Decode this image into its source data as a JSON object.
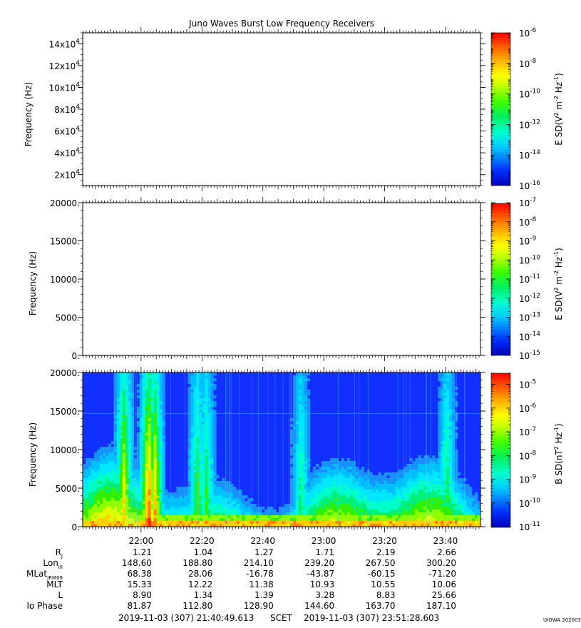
{
  "title": "Juno Waves Burst Low Frequency Receivers",
  "chart_data": [
    {
      "type": "heatmap",
      "panel": "top",
      "ylabel": "Frequency (Hz)",
      "y_ticks": [
        {
          "value": 20000,
          "mant": "2x10",
          "exp": "4"
        },
        {
          "value": 40000,
          "mant": "4x10",
          "exp": "4"
        },
        {
          "value": 60000,
          "mant": "6x10",
          "exp": "4"
        },
        {
          "value": 80000,
          "mant": "8x10",
          "exp": "4"
        },
        {
          "value": 100000,
          "mant": "10x10",
          "exp": "4"
        },
        {
          "value": 120000,
          "mant": "12x10",
          "exp": "4"
        },
        {
          "value": 140000,
          "mant": "14x10",
          "exp": "4"
        }
      ],
      "ylim": [
        10000,
        150000
      ],
      "colorbar": {
        "label_main": "E SD(V",
        "label_sup1": "2",
        "label_mid": " m",
        "label_sup2": "-2",
        "label_mid2": " Hz",
        "label_sup3": "-1",
        "label_end": ")",
        "ticks": [
          {
            "mant": "10",
            "exp": "-6"
          },
          {
            "mant": "10",
            "exp": "-8"
          },
          {
            "mant": "10",
            "exp": "-10"
          },
          {
            "mant": "10",
            "exp": "-12"
          },
          {
            "mant": "10",
            "exp": "-14"
          },
          {
            "mant": "10",
            "exp": "-16"
          }
        ],
        "range_log": [
          -16,
          -6
        ]
      }
    },
    {
      "type": "heatmap",
      "panel": "middle",
      "ylabel": "Frequency (Hz)",
      "y_ticks": [
        {
          "value": 0,
          "label": "0."
        },
        {
          "value": 5000,
          "label": "5000."
        },
        {
          "value": 10000,
          "label": "10000."
        },
        {
          "value": 15000,
          "label": "15000."
        },
        {
          "value": 20000,
          "label": "20000."
        }
      ],
      "ylim": [
        0,
        20000
      ],
      "colorbar": {
        "label_main": "E SD(V",
        "label_sup1": "2",
        "label_mid": " m",
        "label_sup2": "-2",
        "label_mid2": " Hz",
        "label_sup3": "-1",
        "label_end": ")",
        "ticks": [
          {
            "mant": "10",
            "exp": "-7"
          },
          {
            "mant": "10",
            "exp": "-8"
          },
          {
            "mant": "10",
            "exp": "-9"
          },
          {
            "mant": "10",
            "exp": "-10"
          },
          {
            "mant": "10",
            "exp": "-11"
          },
          {
            "mant": "10",
            "exp": "-12"
          },
          {
            "mant": "10",
            "exp": "-13"
          },
          {
            "mant": "10",
            "exp": "-14"
          },
          {
            "mant": "10",
            "exp": "-15"
          }
        ],
        "range_log": [
          -15,
          -7
        ]
      }
    },
    {
      "type": "heatmap",
      "panel": "bottom",
      "ylabel": "Frequency (Hz)",
      "y_ticks": [
        {
          "value": 0,
          "label": "0."
        },
        {
          "value": 5000,
          "label": "5000."
        },
        {
          "value": 10000,
          "label": "10000."
        },
        {
          "value": 15000,
          "label": "15000."
        },
        {
          "value": 20000,
          "label": "20000."
        }
      ],
      "ylim": [
        0,
        20000
      ],
      "x_ticks": [
        "22:00",
        "22:20",
        "22:40",
        "23:00",
        "23:20",
        "23:40"
      ],
      "colorbar": {
        "label_main": "B SD(nT",
        "label_sup1": "2",
        "label_mid": " Hz",
        "label_sup2": "-1",
        "label_mid2": "",
        "label_sup3": "",
        "label_end": ")",
        "ticks": [
          {
            "mant": "10",
            "exp": "-5"
          },
          {
            "mant": "10",
            "exp": "-6"
          },
          {
            "mant": "10",
            "exp": "-7"
          },
          {
            "mant": "10",
            "exp": "-8"
          },
          {
            "mant": "10",
            "exp": "-9"
          },
          {
            "mant": "10",
            "exp": "-10"
          },
          {
            "mant": "10",
            "exp": "-11"
          }
        ],
        "range_log": [
          -11,
          -4.5
        ]
      },
      "bursts": [
        {
          "time": "21:54",
          "level": 0.8
        },
        {
          "time": "22:02",
          "level": 0.95
        },
        {
          "time": "22:04",
          "level": 0.85
        },
        {
          "time": "22:18",
          "level": 0.6
        },
        {
          "time": "22:21",
          "level": 0.55
        },
        {
          "time": "22:52",
          "level": 0.5
        },
        {
          "time": "23:40",
          "level": 0.55
        }
      ]
    }
  ],
  "ephemeris": {
    "rows": [
      {
        "label": "R",
        "sub": "J",
        "values": [
          "1.21",
          "1.04",
          "1.27",
          "1.71",
          "2.19",
          "2.66"
        ]
      },
      {
        "label": "Lon",
        "sub": "III",
        "values": [
          "148.60",
          "188.80",
          "214.10",
          "239.20",
          "267.50",
          "300.20"
        ]
      },
      {
        "label": "MLat",
        "sub": "JRM09",
        "values": [
          "68.38",
          "28.06",
          "-16.78",
          "-43.87",
          "-60.15",
          "-71.20"
        ]
      },
      {
        "label": "MLT",
        "sub": "",
        "values": [
          "15.33",
          "12.22",
          "11.38",
          "10.93",
          "10.55",
          "10.06"
        ]
      },
      {
        "label": "L",
        "sub": "",
        "values": [
          "8.90",
          "1.34",
          "1.39",
          "3.28",
          "8.83",
          "25.66"
        ]
      },
      {
        "label": "Io Phase",
        "sub": "",
        "values": [
          "81.87",
          "112.80",
          "128.90",
          "144.60",
          "163.70",
          "187.10"
        ]
      }
    ]
  },
  "footer": {
    "start": "2019-11-03 (307) 21:40:49.613",
    "scet": "SCET",
    "end": "2019-11-03 (307) 23:51:28.603",
    "credit": "UIOWA 20200307"
  },
  "time_range": [
    "21:40:49.613",
    "23:51:28.603"
  ]
}
